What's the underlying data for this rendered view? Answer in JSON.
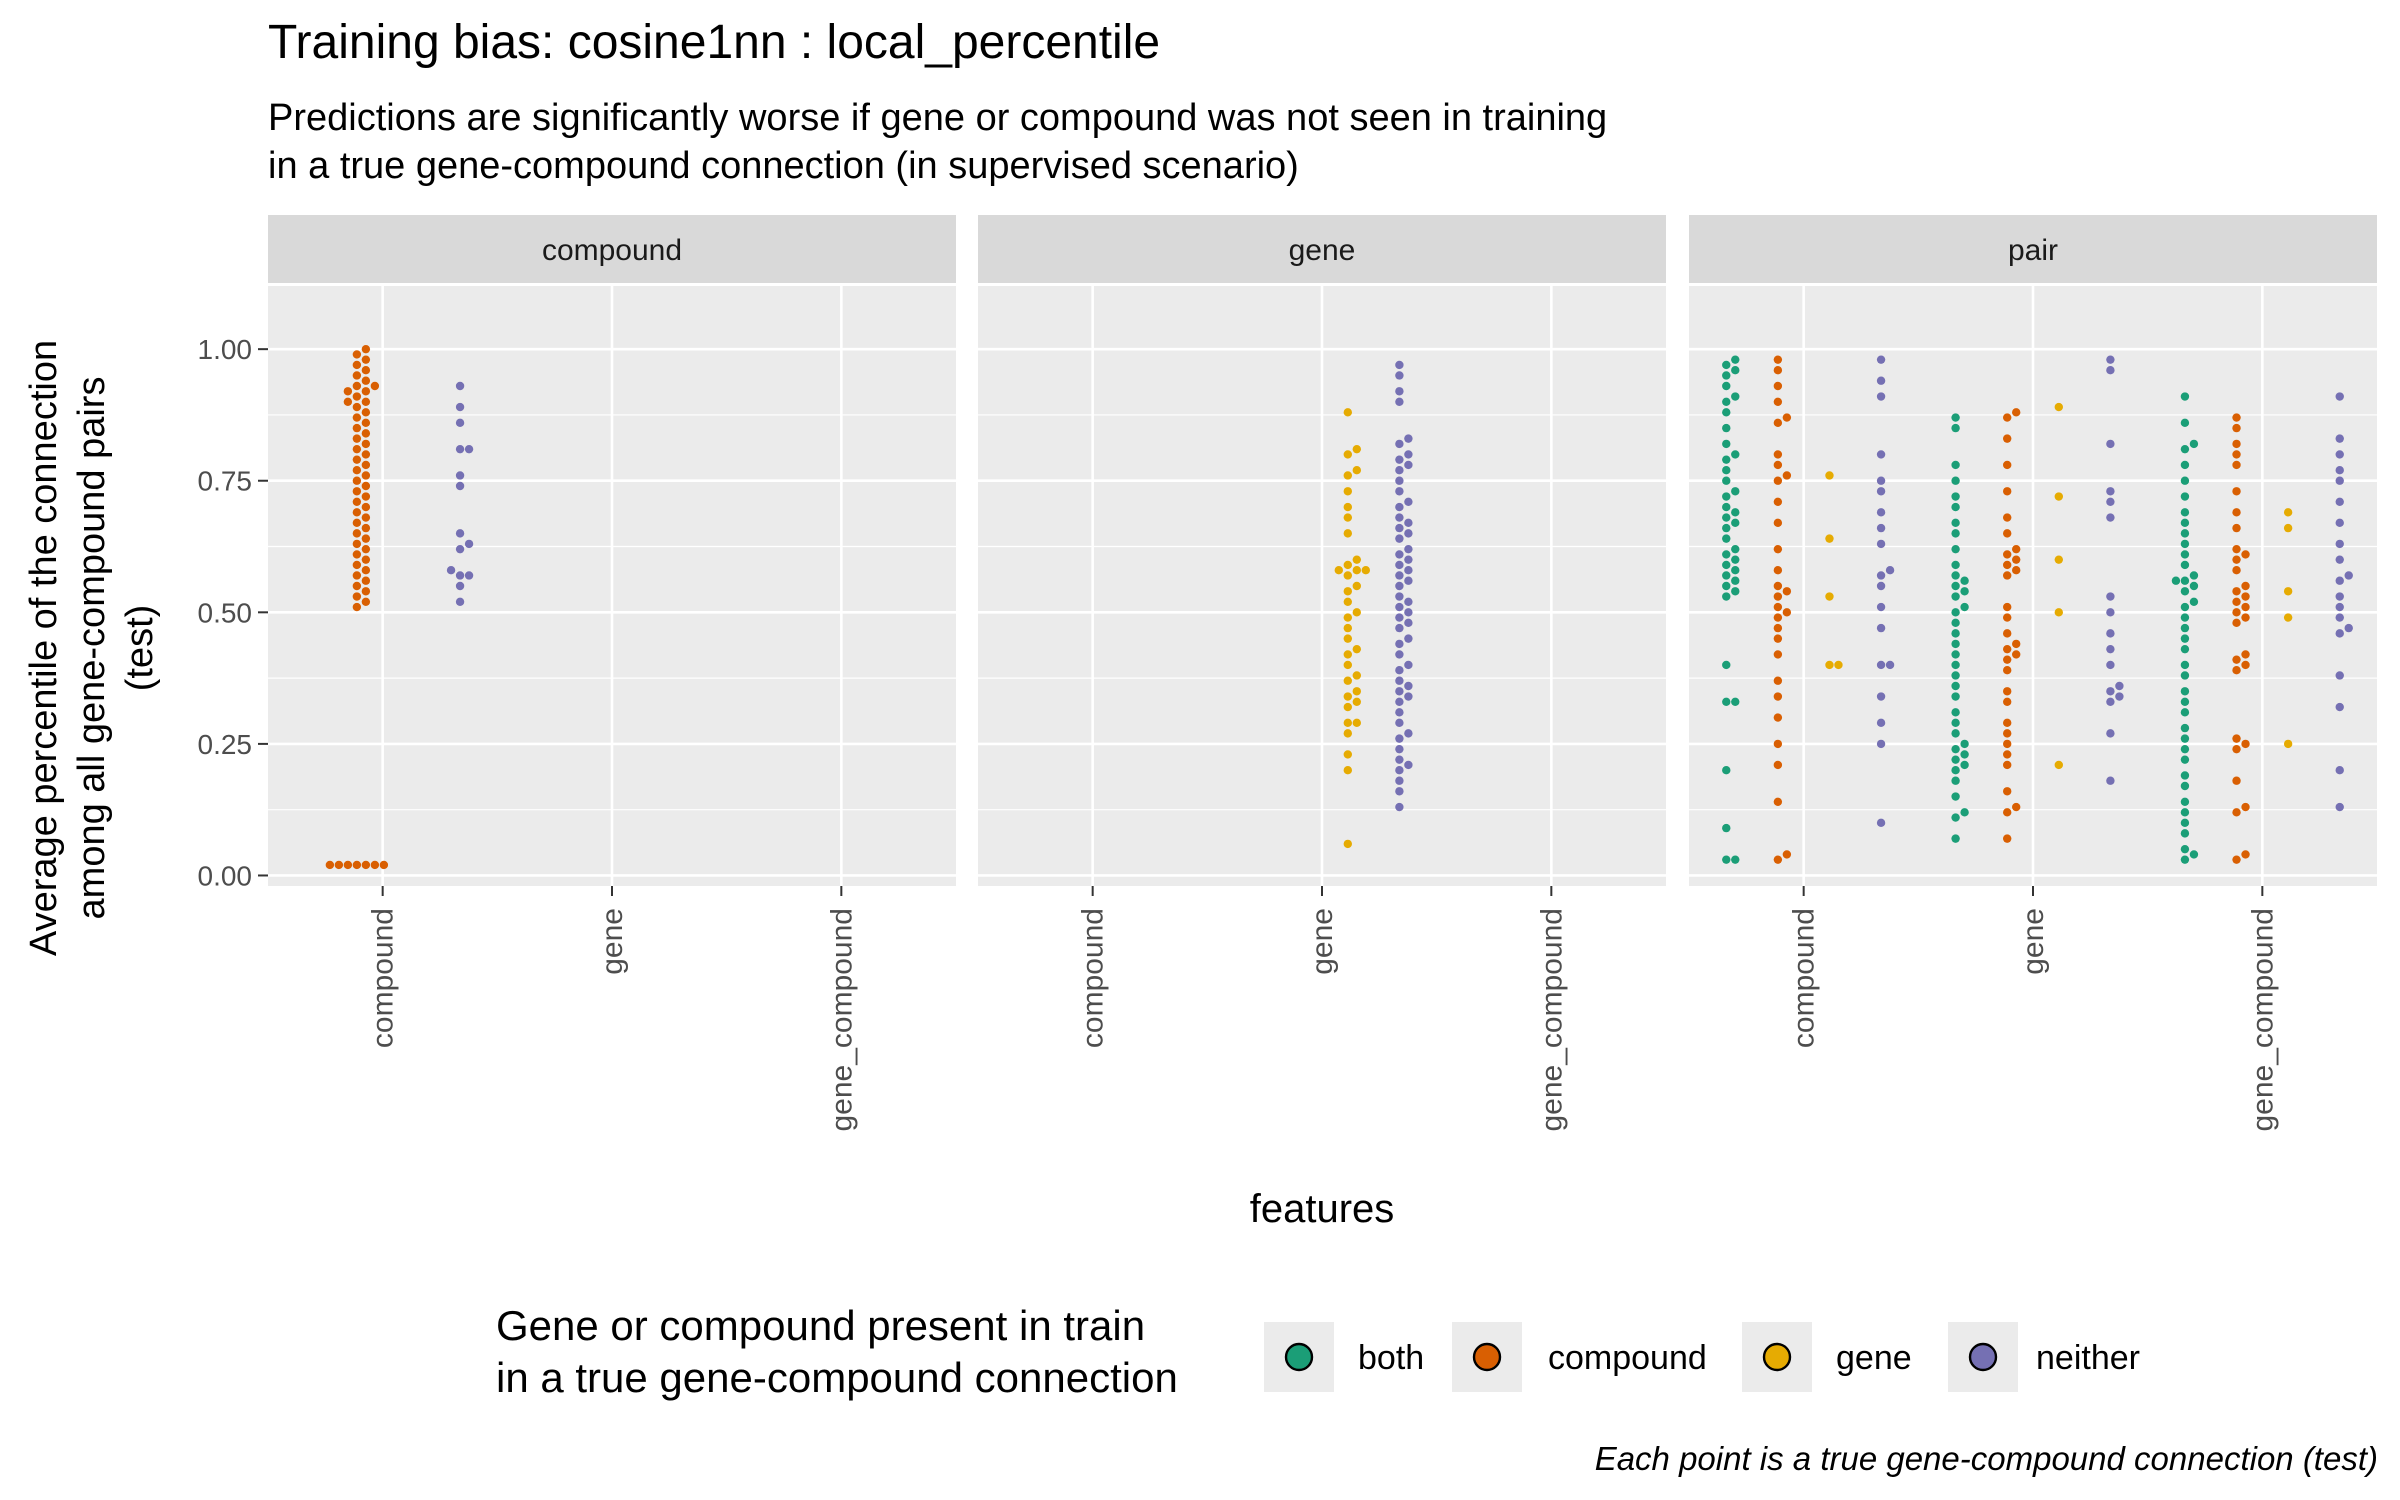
{
  "chart_data": {
    "type": "scatter",
    "title": "Training bias: cosine1nn : local_percentile",
    "subtitle_lines": [
      "Predictions are significantly worse if gene or compound was not seen in training",
      "in a true gene-compound connection (in supervised scenario)"
    ],
    "ylabel_lines": [
      "Average percentile of the connection",
      "among all gene-compound pairs",
      "(test)"
    ],
    "xlabel": "features",
    "caption": "Each point is a true gene-compound connection (test)",
    "legend": {
      "title_lines": [
        "Gene or compound present in train",
        "in a true gene-compound connection"
      ],
      "placement": "bottom",
      "entries": [
        {
          "name": "both",
          "color": "#1b9e77"
        },
        {
          "name": "compound",
          "color": "#d95f02"
        },
        {
          "name": "gene",
          "color": "#e6ab02"
        },
        {
          "name": "neither",
          "color": "#7570b3"
        }
      ]
    },
    "ylim": [
      -0.02,
      1.12
    ],
    "yticks": [
      0.0,
      0.25,
      0.5,
      0.75,
      1.0
    ],
    "ytick_labels": [
      "0.00",
      "0.25",
      "0.50",
      "0.75",
      "1.00"
    ],
    "categories": [
      "compound",
      "gene",
      "gene_compound"
    ],
    "grid": true,
    "facets": [
      {
        "name": "compound",
        "groups": [
          {
            "category": "compound",
            "status": "compound",
            "values": [
              1.0,
              0.99,
              0.98,
              0.97,
              0.96,
              0.95,
              0.94,
              0.93,
              0.93,
              0.92,
              0.92,
              0.91,
              0.9,
              0.9,
              0.89,
              0.88,
              0.87,
              0.86,
              0.85,
              0.84,
              0.83,
              0.82,
              0.81,
              0.8,
              0.79,
              0.78,
              0.77,
              0.76,
              0.75,
              0.74,
              0.73,
              0.72,
              0.71,
              0.7,
              0.69,
              0.68,
              0.67,
              0.66,
              0.65,
              0.64,
              0.63,
              0.62,
              0.61,
              0.6,
              0.59,
              0.58,
              0.57,
              0.56,
              0.55,
              0.54,
              0.53,
              0.52,
              0.51,
              0.02,
              0.02,
              0.02,
              0.02,
              0.02,
              0.02,
              0.02
            ]
          },
          {
            "category": "compound",
            "status": "neither",
            "values": [
              0.93,
              0.89,
              0.86,
              0.81,
              0.81,
              0.76,
              0.74,
              0.65,
              0.63,
              0.62,
              0.58,
              0.57,
              0.57,
              0.55,
              0.52
            ]
          }
        ]
      },
      {
        "name": "gene",
        "groups": [
          {
            "category": "gene",
            "status": "gene",
            "values": [
              0.88,
              0.81,
              0.8,
              0.77,
              0.76,
              0.73,
              0.7,
              0.68,
              0.65,
              0.6,
              0.59,
              0.58,
              0.58,
              0.58,
              0.57,
              0.55,
              0.54,
              0.52,
              0.5,
              0.49,
              0.47,
              0.45,
              0.43,
              0.42,
              0.4,
              0.38,
              0.37,
              0.35,
              0.34,
              0.33,
              0.32,
              0.29,
              0.29,
              0.27,
              0.23,
              0.2,
              0.06
            ]
          },
          {
            "category": "gene",
            "status": "neither",
            "values": [
              0.97,
              0.95,
              0.92,
              0.9,
              0.83,
              0.82,
              0.8,
              0.79,
              0.78,
              0.77,
              0.75,
              0.73,
              0.71,
              0.7,
              0.68,
              0.67,
              0.66,
              0.65,
              0.64,
              0.62,
              0.61,
              0.6,
              0.59,
              0.58,
              0.57,
              0.56,
              0.55,
              0.53,
              0.52,
              0.51,
              0.5,
              0.49,
              0.48,
              0.47,
              0.45,
              0.44,
              0.42,
              0.4,
              0.39,
              0.37,
              0.36,
              0.35,
              0.34,
              0.33,
              0.31,
              0.29,
              0.27,
              0.26,
              0.24,
              0.22,
              0.21,
              0.2,
              0.18,
              0.16,
              0.13
            ]
          }
        ]
      },
      {
        "name": "pair",
        "groups": [
          {
            "category": "compound",
            "status": "both",
            "values": [
              0.98,
              0.97,
              0.96,
              0.95,
              0.93,
              0.91,
              0.9,
              0.88,
              0.85,
              0.82,
              0.8,
              0.79,
              0.77,
              0.75,
              0.73,
              0.72,
              0.7,
              0.69,
              0.68,
              0.67,
              0.66,
              0.64,
              0.62,
              0.61,
              0.6,
              0.59,
              0.58,
              0.57,
              0.56,
              0.55,
              0.54,
              0.53,
              0.4,
              0.33,
              0.33,
              0.2,
              0.09,
              0.03,
              0.03
            ]
          },
          {
            "category": "compound",
            "status": "compound",
            "values": [
              0.98,
              0.96,
              0.93,
              0.9,
              0.87,
              0.86,
              0.8,
              0.78,
              0.76,
              0.75,
              0.71,
              0.67,
              0.62,
              0.58,
              0.55,
              0.54,
              0.53,
              0.51,
              0.5,
              0.49,
              0.47,
              0.45,
              0.42,
              0.37,
              0.34,
              0.3,
              0.25,
              0.21,
              0.14,
              0.04,
              0.03
            ]
          },
          {
            "category": "compound",
            "status": "gene",
            "values": [
              0.76,
              0.64,
              0.53,
              0.4,
              0.4
            ]
          },
          {
            "category": "compound",
            "status": "neither",
            "values": [
              0.98,
              0.94,
              0.91,
              0.8,
              0.75,
              0.73,
              0.69,
              0.66,
              0.63,
              0.58,
              0.57,
              0.55,
              0.51,
              0.47,
              0.4,
              0.4,
              0.34,
              0.29,
              0.25,
              0.1
            ]
          },
          {
            "category": "gene",
            "status": "both",
            "values": [
              0.87,
              0.85,
              0.78,
              0.75,
              0.72,
              0.7,
              0.67,
              0.65,
              0.62,
              0.59,
              0.57,
              0.56,
              0.55,
              0.54,
              0.53,
              0.51,
              0.5,
              0.48,
              0.46,
              0.44,
              0.42,
              0.4,
              0.38,
              0.36,
              0.34,
              0.31,
              0.29,
              0.27,
              0.25,
              0.24,
              0.23,
              0.22,
              0.21,
              0.2,
              0.18,
              0.15,
              0.12,
              0.11,
              0.07
            ]
          },
          {
            "category": "gene",
            "status": "compound",
            "values": [
              0.88,
              0.87,
              0.83,
              0.78,
              0.73,
              0.68,
              0.65,
              0.62,
              0.61,
              0.6,
              0.59,
              0.58,
              0.57,
              0.51,
              0.49,
              0.46,
              0.44,
              0.43,
              0.42,
              0.41,
              0.39,
              0.35,
              0.33,
              0.29,
              0.27,
              0.25,
              0.23,
              0.21,
              0.16,
              0.13,
              0.12,
              0.07
            ]
          },
          {
            "category": "gene",
            "status": "gene",
            "values": [
              0.89,
              0.72,
              0.6,
              0.5,
              0.21
            ]
          },
          {
            "category": "gene",
            "status": "neither",
            "values": [
              0.98,
              0.96,
              0.82,
              0.73,
              0.71,
              0.68,
              0.53,
              0.5,
              0.46,
              0.43,
              0.4,
              0.36,
              0.35,
              0.34,
              0.33,
              0.27,
              0.18
            ]
          },
          {
            "category": "gene_compound",
            "status": "both",
            "values": [
              0.91,
              0.86,
              0.82,
              0.81,
              0.78,
              0.75,
              0.72,
              0.69,
              0.67,
              0.65,
              0.63,
              0.61,
              0.59,
              0.57,
              0.56,
              0.56,
              0.55,
              0.54,
              0.52,
              0.51,
              0.49,
              0.47,
              0.45,
              0.43,
              0.4,
              0.38,
              0.35,
              0.33,
              0.31,
              0.28,
              0.26,
              0.24,
              0.22,
              0.19,
              0.17,
              0.14,
              0.12,
              0.1,
              0.08,
              0.05,
              0.04,
              0.03
            ]
          },
          {
            "category": "gene_compound",
            "status": "compound",
            "values": [
              0.87,
              0.85,
              0.82,
              0.8,
              0.78,
              0.73,
              0.69,
              0.66,
              0.62,
              0.61,
              0.6,
              0.58,
              0.55,
              0.54,
              0.53,
              0.52,
              0.51,
              0.5,
              0.49,
              0.48,
              0.42,
              0.41,
              0.4,
              0.39,
              0.26,
              0.25,
              0.24,
              0.18,
              0.13,
              0.12,
              0.04,
              0.03
            ]
          },
          {
            "category": "gene_compound",
            "status": "gene",
            "values": [
              0.69,
              0.66,
              0.54,
              0.49,
              0.25
            ]
          },
          {
            "category": "gene_compound",
            "status": "neither",
            "values": [
              0.91,
              0.83,
              0.8,
              0.77,
              0.75,
              0.71,
              0.67,
              0.63,
              0.6,
              0.57,
              0.56,
              0.53,
              0.51,
              0.49,
              0.47,
              0.46,
              0.38,
              0.32,
              0.2,
              0.13
            ]
          }
        ]
      }
    ]
  }
}
